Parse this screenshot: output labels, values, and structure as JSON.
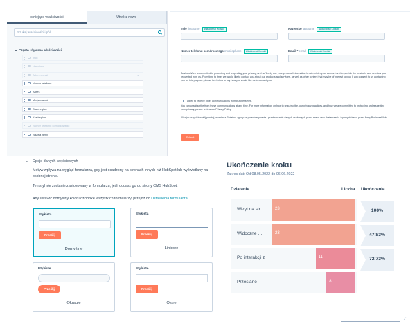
{
  "editor": {
    "tabs": [
      {
        "label": "Istniejące właściwości",
        "active": true
      },
      {
        "label": "Utwórz nowe",
        "active": false
      }
    ],
    "search_placeholder": "Szukaj właściwości i pól",
    "section_title": "Często używane właściwości",
    "properties": [
      {
        "label": "Imię",
        "disabled": true
      },
      {
        "label": "Nazwisko",
        "disabled": true
      },
      {
        "label": "Adres e-mail",
        "disabled": true
      },
      {
        "label": "Numer telefonu",
        "disabled": false
      },
      {
        "label": "Adres",
        "disabled": false
      },
      {
        "label": "Miejscowość",
        "disabled": false
      },
      {
        "label": "Stan/region",
        "disabled": false
      },
      {
        "label": "Kraj/region",
        "disabled": false
      },
      {
        "label": "Numer telefonu komórkowego",
        "disabled": true
      },
      {
        "label": "Nazwa firmy",
        "disabled": false
      }
    ]
  },
  "preview": {
    "first_name_label": "Imię",
    "first_name_sub": "firstname",
    "last_name_label": "Nazwisko",
    "last_name_sub": "lastname",
    "mobile_label": "Numer telefonu komórkowego",
    "mobile_sub": "mobilephone",
    "email_label": "Email *",
    "email_sub": "email",
    "tag": "Właściwości Kontakt",
    "privacy_text": "BusinessWeb is committed to protecting and respecting your privacy, and we'll only use your personal information to administer your account and to provide the products and services you requested from us. From time to time, we would like to contact you about our products and services, as well as other content that may be of interest to you. If you consent to us contacting you for this purpose, please tick below to say how you would like us to contact you:",
    "consent_checkbox": "I agree to receive other communications from BusinessWeb.",
    "unsubscribe_text": "You can unsubscribe from these communications at any time. For more information on how to unsubscribe, our privacy practices, and how we are committed to protecting and respecting your privacy, please review our Privacy Policy.",
    "agree_text": "Klikając przycisk wyślij poniżej, wyrażasz Państwo zgody na przechowywanie i przetwarzanie danych osobowych przez nas w celu dostarczenia żądanych treści przez firmę BusinessWeb.",
    "submit_label": "Submit"
  },
  "options": {
    "title": "Opcje danych wejściowych",
    "desc1": "Motyw wpływa na wygląd formularza, gdy jest osadzony na stronach innych niż HubSpot lub wyświetlany na osobnej stronie.",
    "desc2": "Ten styl nie zostanie zastosowany w formularzu, jeśli dodasz go do strony CMS HubSpot.",
    "desc3_prefix": "Aby ustawić domyślny kolor i czcionkę wszystkich formularzy, przejdź do ",
    "desc3_link": "Ustawienia formularza",
    "desc3_suffix": ".",
    "cards": [
      {
        "label": "Etykieta",
        "button": "Prześlij",
        "name": "Domyślne",
        "selected": true
      },
      {
        "label": "Etykieta",
        "button": "Prześlij",
        "name": "Liniowe",
        "selected": false
      },
      {
        "label": "Etykieta",
        "button": "Prześlij",
        "name": "Okrągłe",
        "selected": false
      },
      {
        "label": "Etykieta",
        "button": "Prześlij",
        "name": "Ostre",
        "selected": false
      }
    ]
  },
  "completion": {
    "title": "Ukończenie kroku",
    "date_range": "Zakres dat: Od 08.05.2022 do 06.06.2022",
    "col_action": "Działanie",
    "col_count": "Liczba",
    "col_completion": "Ukończenie",
    "bar_colors": [
      "#f2a391",
      "#f2a391",
      "#eb8b99",
      "#e88ea5"
    ],
    "rows": [
      {
        "label": "Wizyt na str…",
        "value": 23
      },
      {
        "label": "Widoczne …",
        "value": 23
      },
      {
        "label": "Po interakcji z",
        "value": 11
      },
      {
        "label": "Przesłane",
        "value": 8
      }
    ],
    "rates": [
      "100%",
      "47,83%",
      "72,73%"
    ]
  }
}
